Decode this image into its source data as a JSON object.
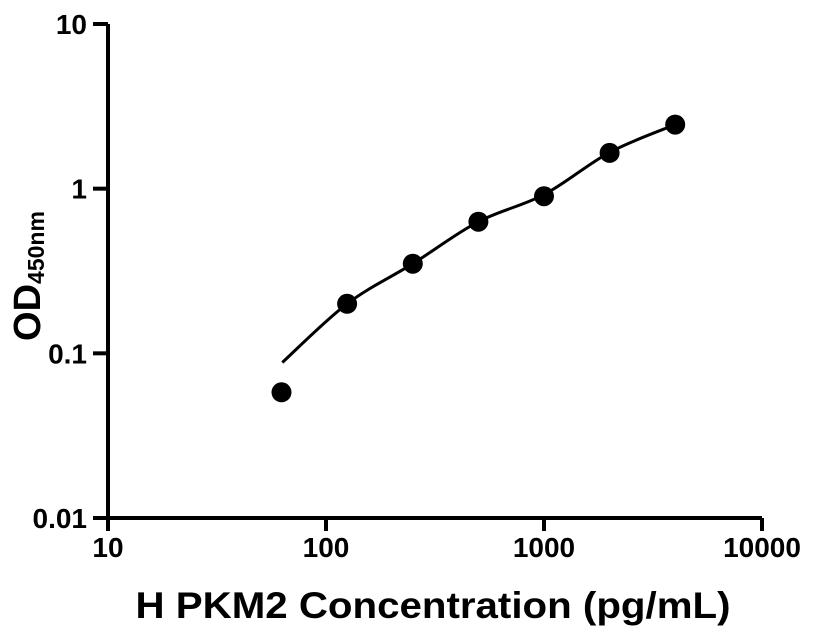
{
  "figure": {
    "background_color": "#ffffff",
    "ink_color": "#000000"
  },
  "chart_data": {
    "type": "scatter",
    "title": "",
    "xlabel": "H PKM2 Concentration (pg/mL)",
    "ylabel": "OD",
    "ylabel_subscript": "450nm",
    "x_scale": "log10",
    "y_scale": "log10",
    "xlim": [
      10,
      10000
    ],
    "ylim": [
      0.01,
      10
    ],
    "x_ticks": [
      10,
      100,
      1000,
      10000
    ],
    "x_tick_labels": [
      "10",
      "100",
      "1000",
      "10000"
    ],
    "y_ticks": [
      0.01,
      0.1,
      1,
      10
    ],
    "y_tick_labels": [
      "0.01",
      "0.1",
      "1",
      "10"
    ],
    "grid": false,
    "legend": null,
    "marker": {
      "shape": "circle",
      "color": "#000000",
      "radius_px": 10
    },
    "points": [
      {
        "x": 62.5,
        "y": 0.058
      },
      {
        "x": 125,
        "y": 0.2
      },
      {
        "x": 250,
        "y": 0.35
      },
      {
        "x": 500,
        "y": 0.63
      },
      {
        "x": 1000,
        "y": 0.9
      },
      {
        "x": 2000,
        "y": 1.65
      },
      {
        "x": 4000,
        "y": 2.45
      }
    ],
    "fit_curve": {
      "style": "smooth",
      "color": "#000000",
      "points": [
        {
          "x": 63,
          "y": 0.088
        },
        {
          "x": 125,
          "y": 0.2
        },
        {
          "x": 250,
          "y": 0.35
        },
        {
          "x": 500,
          "y": 0.63
        },
        {
          "x": 1000,
          "y": 0.92
        },
        {
          "x": 2000,
          "y": 1.66
        },
        {
          "x": 4000,
          "y": 2.45
        }
      ]
    }
  }
}
